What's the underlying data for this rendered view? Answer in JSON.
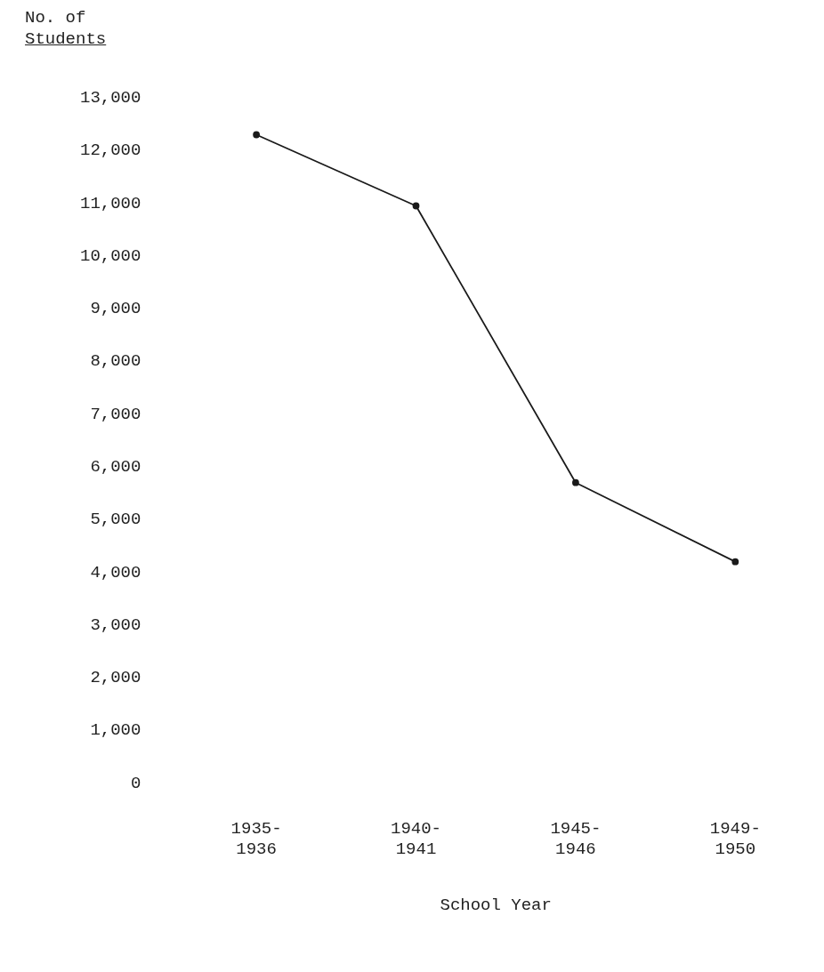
{
  "chart_data": {
    "type": "line",
    "ylabel": "No. of Students",
    "xlabel": "School Year",
    "categories": [
      "1935-1936",
      "1940-1941",
      "1945-1946",
      "1949-1950"
    ],
    "series": [
      {
        "color": "#1a1a1a",
        "values": [
          12300,
          10950,
          5700,
          4200
        ]
      }
    ],
    "ylim": [
      0,
      13000
    ],
    "yticks": [
      {
        "value": 0,
        "label": "0"
      },
      {
        "value": 1000,
        "label": "1,000"
      },
      {
        "value": 2000,
        "label": "2,000"
      },
      {
        "value": 3000,
        "label": "3,000"
      },
      {
        "value": 4000,
        "label": "4,000"
      },
      {
        "value": 5000,
        "label": "5,000"
      },
      {
        "value": 6000,
        "label": "6,000"
      },
      {
        "value": 7000,
        "label": "7,000"
      },
      {
        "value": 8000,
        "label": "8,000"
      },
      {
        "value": 9000,
        "label": "9,000"
      },
      {
        "value": 10000,
        "label": "10,000"
      },
      {
        "value": 11000,
        "label": "11,000"
      },
      {
        "value": 12000,
        "label": "12,000"
      },
      {
        "value": 13000,
        "label": "13,000"
      }
    ],
    "grid": false,
    "legend": false,
    "marker": "circle",
    "line_style": "solid"
  }
}
